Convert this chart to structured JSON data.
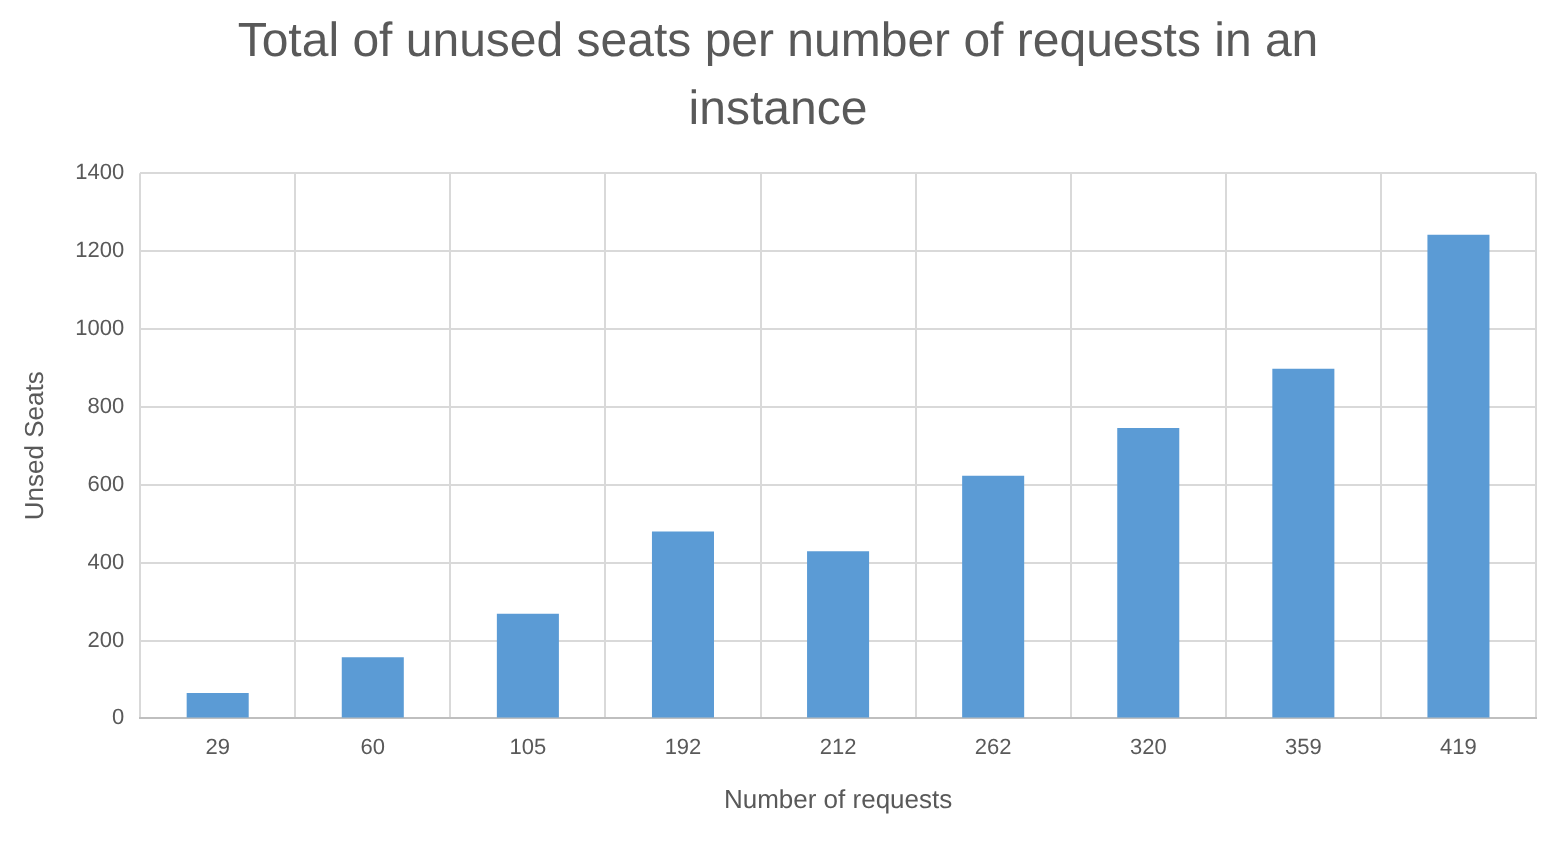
{
  "chart_data": {
    "type": "bar",
    "title": "Total of unused seats per number of requests in an instance",
    "xlabel": "Number of requests",
    "ylabel": "Unsed Seats",
    "categories": [
      "29",
      "60",
      "105",
      "192",
      "212",
      "262",
      "320",
      "359",
      "419"
    ],
    "values": [
      65,
      157,
      269,
      480,
      429,
      623,
      746,
      898,
      1242
    ],
    "color": "#5b9bd5",
    "ylim": [
      0,
      1400
    ],
    "yticks": [
      0,
      200,
      400,
      600,
      800,
      1000,
      1200,
      1400
    ],
    "grid": true
  }
}
